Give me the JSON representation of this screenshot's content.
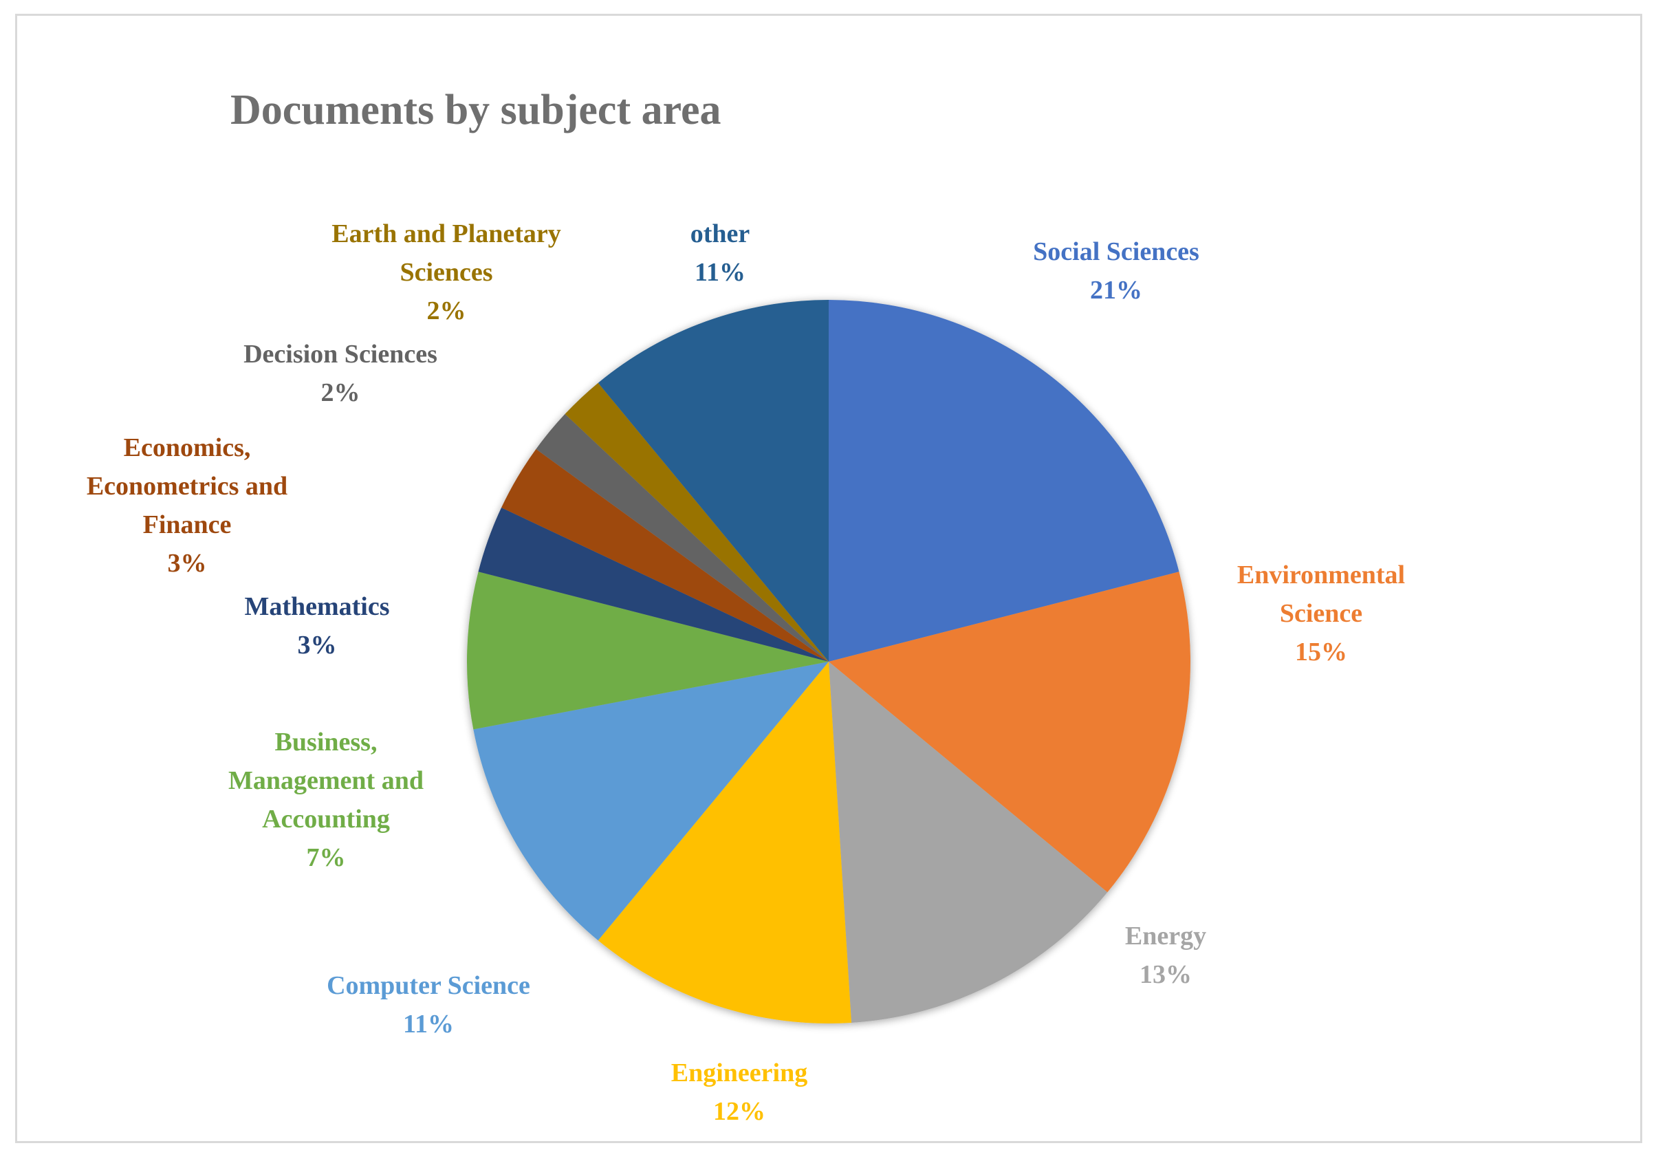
{
  "chart_data": {
    "type": "pie",
    "title": "Documents by subject area",
    "start_angle_deg": 0,
    "direction": "clockwise",
    "slices": [
      {
        "category": "Social Sciences",
        "value": 21,
        "label_lines": [
          "Social Sciences"
        ],
        "pct_label": "21%",
        "color": "#4472C4"
      },
      {
        "category": "Environmental Science",
        "value": 15,
        "label_lines": [
          "Environmental",
          "Science"
        ],
        "pct_label": "15%",
        "color": "#ED7D31"
      },
      {
        "category": "Energy",
        "value": 13,
        "label_lines": [
          "Energy"
        ],
        "pct_label": "13%",
        "color": "#A5A5A5"
      },
      {
        "category": "Engineering",
        "value": 12,
        "label_lines": [
          "Engineering"
        ],
        "pct_label": "12%",
        "color": "#FFC000"
      },
      {
        "category": "Computer Science",
        "value": 11,
        "label_lines": [
          "Computer Science"
        ],
        "pct_label": "11%",
        "color": "#5B9BD5"
      },
      {
        "category": "Business, Management and Accounting",
        "value": 7,
        "label_lines": [
          "Business,",
          "Management and",
          "Accounting"
        ],
        "pct_label": "7%",
        "color": "#70AD47"
      },
      {
        "category": "Mathematics",
        "value": 3,
        "label_lines": [
          "Mathematics"
        ],
        "pct_label": "3%",
        "color": "#264478"
      },
      {
        "category": "Economics, Econometrics and Finance",
        "value": 3,
        "label_lines": [
          "Economics,",
          "Econometrics and",
          "Finance"
        ],
        "pct_label": "3%",
        "color": "#9E480E"
      },
      {
        "category": "Decision Sciences",
        "value": 2,
        "label_lines": [
          "Decision Sciences"
        ],
        "pct_label": "2%",
        "color": "#636363"
      },
      {
        "category": "Earth and Planetary Sciences",
        "value": 2,
        "label_lines": [
          "Earth and Planetary",
          "Sciences"
        ],
        "pct_label": "2%",
        "color": "#997300"
      },
      {
        "category": "other",
        "value": 11,
        "label_lines": [
          "other"
        ],
        "pct_label": "11%",
        "color": "#255E91"
      }
    ]
  }
}
